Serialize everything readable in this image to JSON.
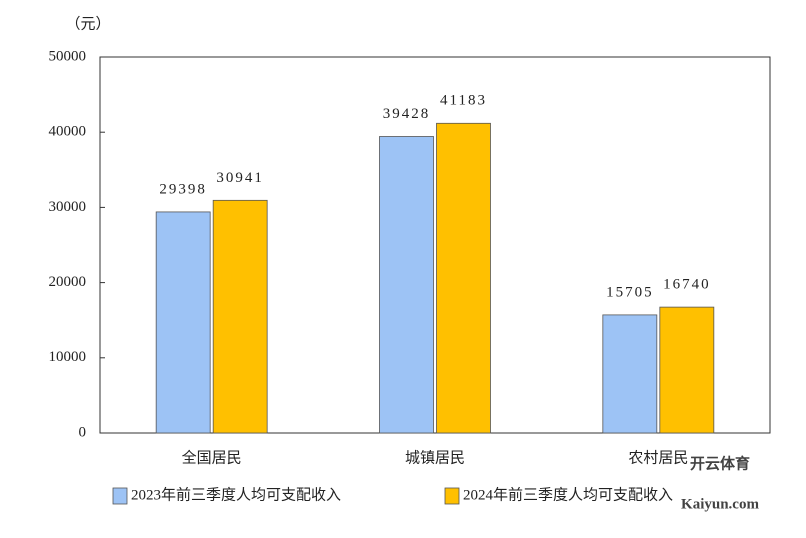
{
  "chart_data": {
    "type": "bar",
    "unit_label": "（元）",
    "categories": [
      "全国居民",
      "城镇居民",
      "农村居民"
    ],
    "series": [
      {
        "name": "2023年前三季度人均可支配收入",
        "color": "#9dc3f5",
        "values": [
          29398,
          39428,
          15705
        ]
      },
      {
        "name": "2024年前三季度人均可支配收入",
        "color": "#ffc000",
        "values": [
          30941,
          41183,
          16740
        ]
      }
    ],
    "ylim": [
      0,
      50000
    ],
    "yticks": [
      0,
      10000,
      20000,
      30000,
      40000,
      50000
    ],
    "watermark": [
      "开云体育",
      "Kaiyun.com"
    ]
  }
}
